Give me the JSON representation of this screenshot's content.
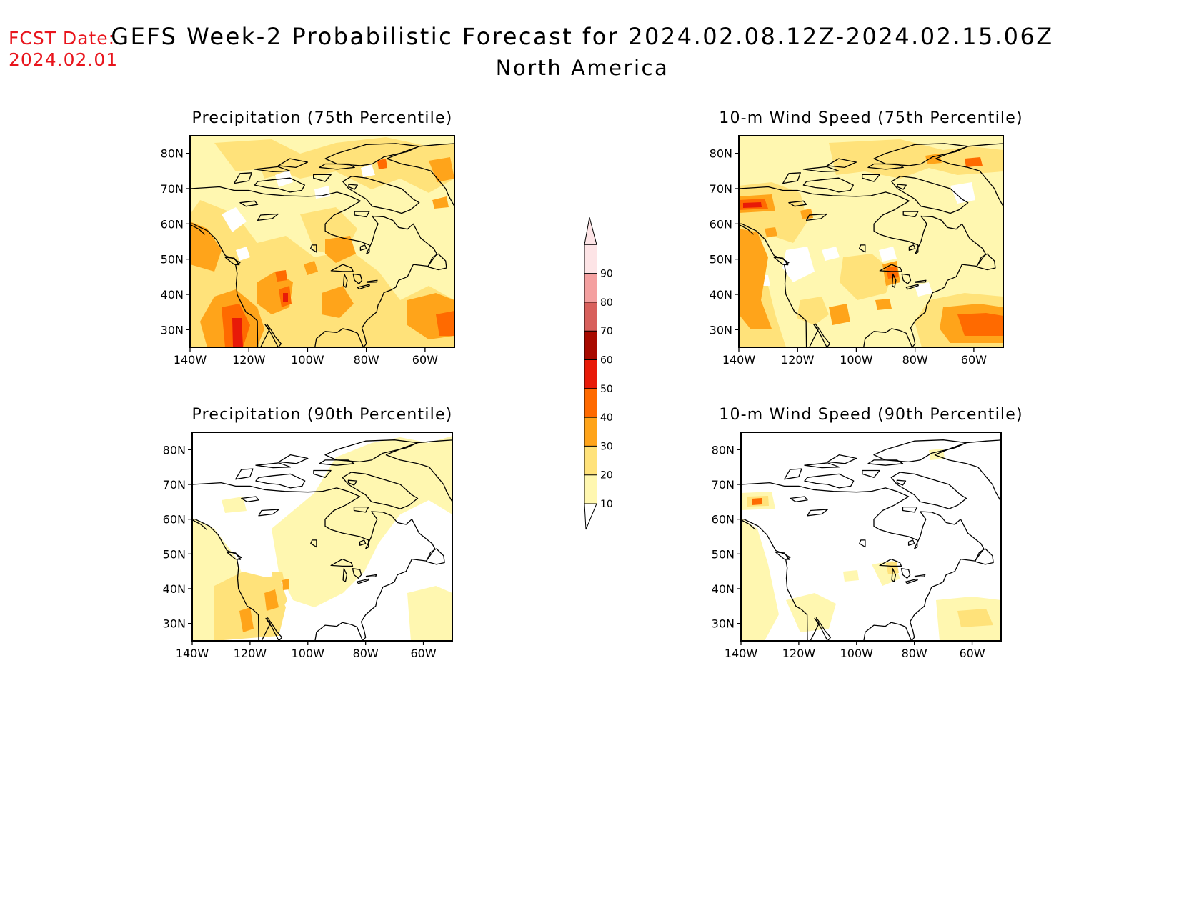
{
  "header": {
    "fcst_label": "FCST Date:",
    "fcst_date": "2024.02.01",
    "title": "GEFS Week-2 Probabilistic Forecast for 2024.02.08.12Z-2024.02.15.06Z",
    "subtitle": "North America"
  },
  "panels": [
    {
      "id": "precip75",
      "title": "Precipitation (75th Percentile)"
    },
    {
      "id": "wind75",
      "title": "10-m Wind Speed (75th Percentile)"
    },
    {
      "id": "precip90",
      "title": "Precipitation (90th Percentile)"
    },
    {
      "id": "wind90",
      "title": "10-m Wind Speed (90th Percentile)"
    }
  ],
  "axes": {
    "lon_ticks": [
      "140W",
      "120W",
      "100W",
      "80W",
      "60W"
    ],
    "lat_ticks": [
      "80N",
      "70N",
      "60N",
      "50N",
      "40N",
      "30N"
    ],
    "lon_values": [
      -140,
      -120,
      -100,
      -80,
      -60
    ],
    "lat_values": [
      80,
      70,
      60,
      50,
      40,
      30
    ],
    "lon_range": [
      -140,
      -50
    ],
    "lat_range": [
      25,
      85
    ]
  },
  "colorbar": {
    "levels": [
      "10",
      "20",
      "30",
      "40",
      "50",
      "60",
      "70",
      "80",
      "90"
    ],
    "colors": [
      "#fff7b0",
      "#ffe27a",
      "#ffa41a",
      "#ff6a00",
      "#e81a08",
      "#a80a00",
      "#d8605c",
      "#f4a0a0",
      "#fde4e6"
    ]
  }
}
